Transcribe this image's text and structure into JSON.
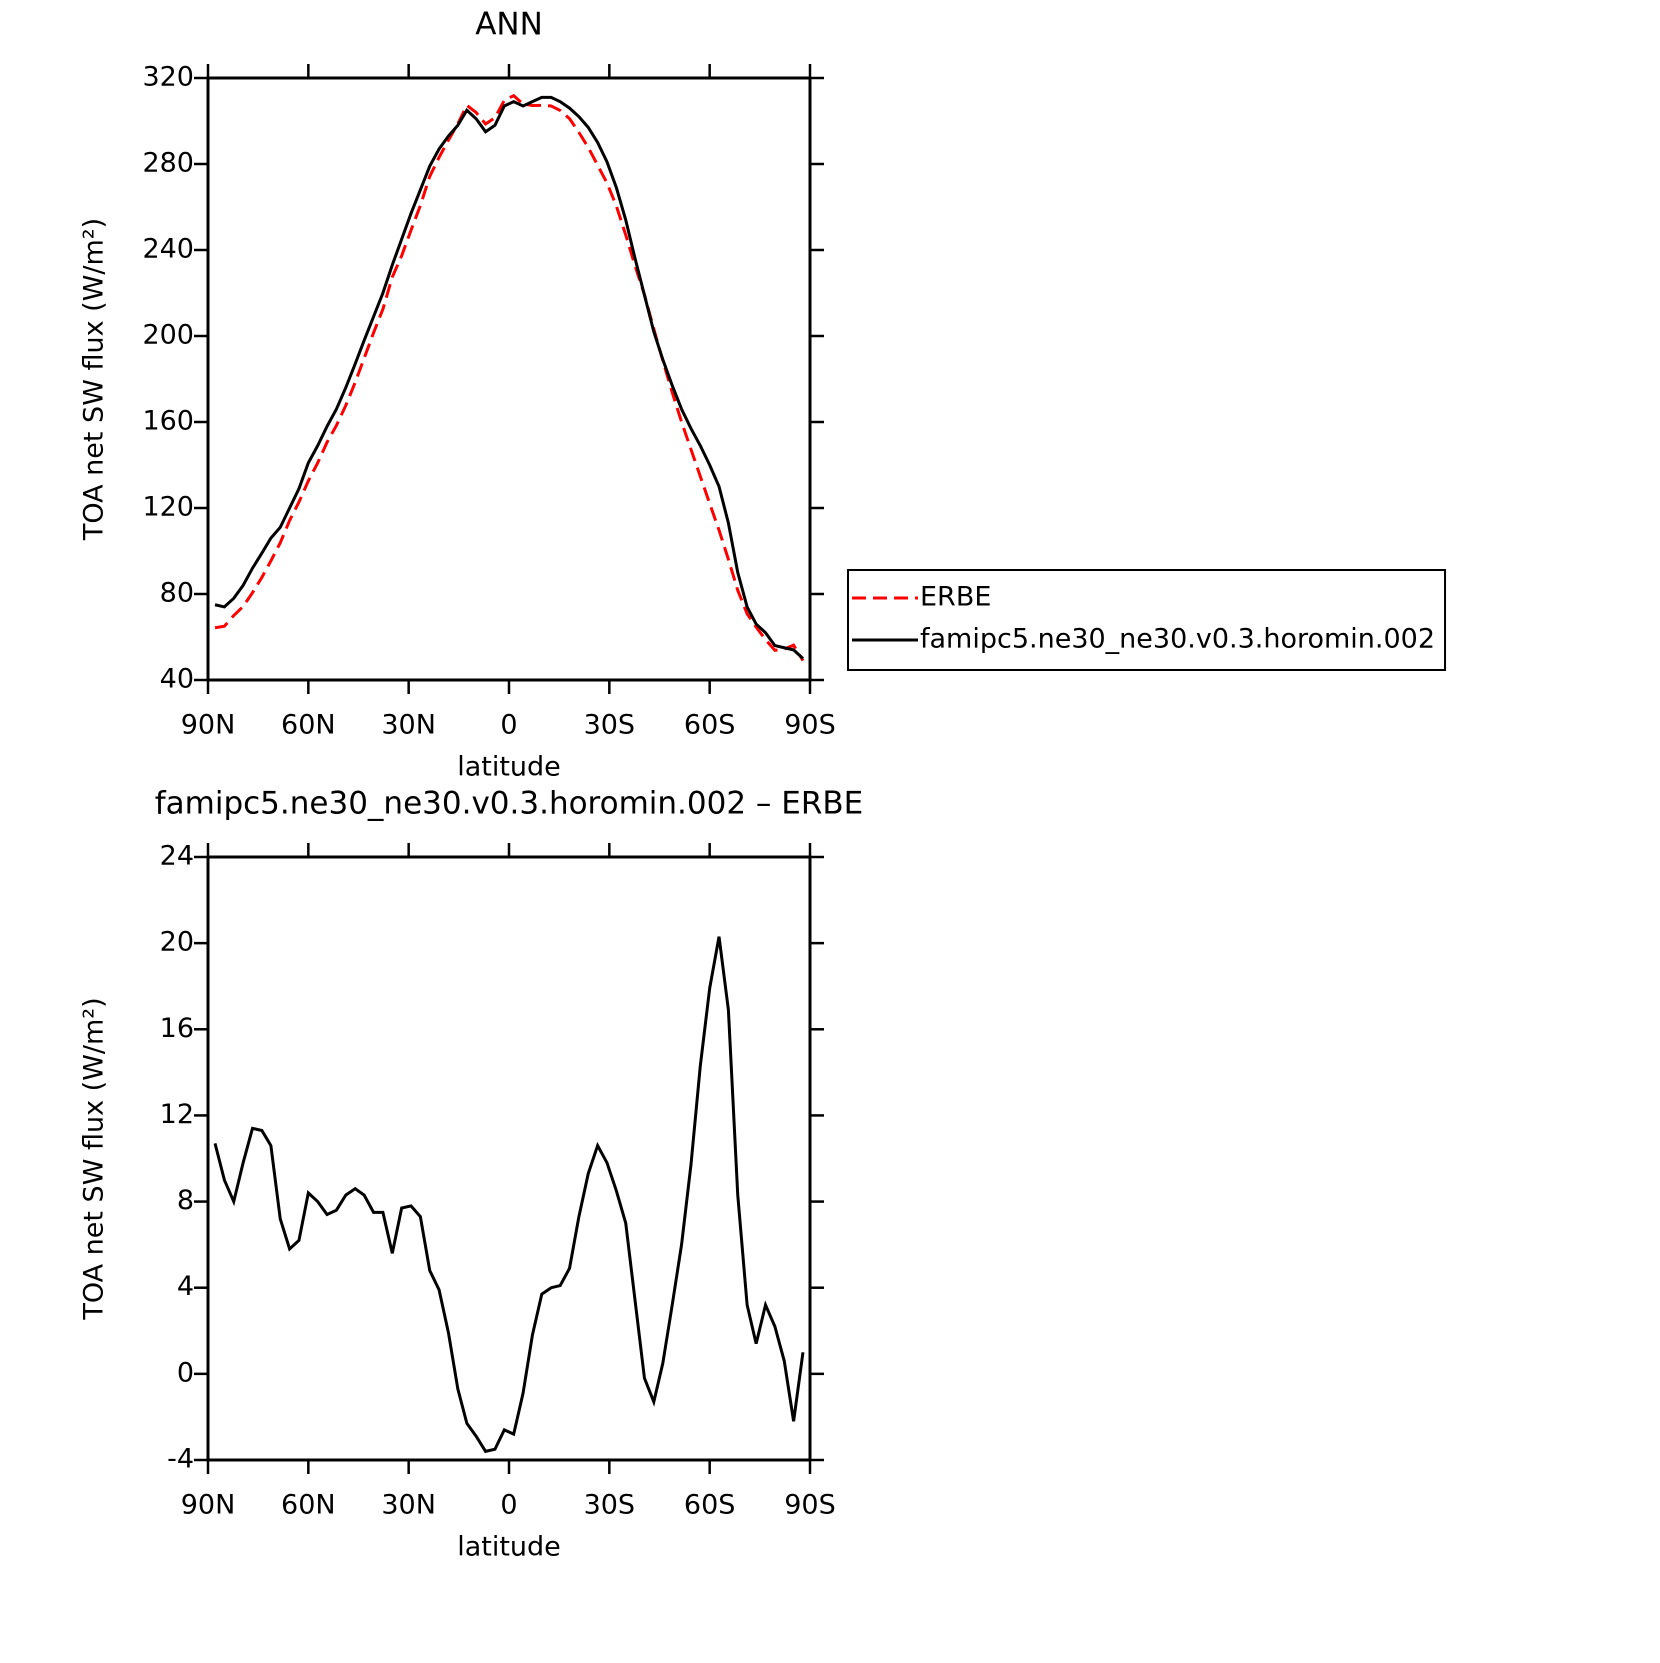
{
  "chart_data": [
    {
      "type": "line",
      "title": "ANN",
      "xlabel": "latitude",
      "ylabel": "TOA net SW flux (W/m²)",
      "x": [
        87.9,
        85.1,
        82.3,
        79.5,
        76.7,
        73.9,
        71.2,
        68.4,
        65.6,
        62.8,
        60.0,
        57.2,
        54.4,
        51.6,
        48.8,
        46.0,
        43.3,
        40.5,
        37.7,
        34.9,
        32.1,
        29.3,
        26.5,
        23.7,
        20.9,
        18.1,
        15.3,
        12.6,
        9.8,
        7.0,
        4.2,
        1.4,
        -1.4,
        -4.2,
        -7.0,
        -9.8,
        -12.6,
        -15.3,
        -18.1,
        -20.9,
        -23.7,
        -26.5,
        -29.3,
        -32.1,
        -34.9,
        -37.7,
        -40.5,
        -43.3,
        -46.0,
        -48.8,
        -51.6,
        -54.4,
        -57.2,
        -60.0,
        -62.8,
        -65.6,
        -68.4,
        -71.2,
        -73.9,
        -76.7,
        -79.5,
        -82.3,
        -85.1,
        -87.9
      ],
      "series": [
        {
          "name": "ERBE",
          "color": "#ff0000",
          "linestyle": "dashed",
          "values": [
            64.3,
            65,
            70,
            74.2,
            80.6,
            87.7,
            95.4,
            103.8,
            114.2,
            122.8,
            132.6,
            141,
            150.6,
            158.4,
            167.7,
            178.4,
            189.7,
            201.5,
            212.5,
            227.4,
            237.3,
            249.2,
            260.7,
            274.2,
            283.1,
            291.1,
            298.7,
            307.3,
            303.9,
            298.6,
            301.5,
            309.6,
            311.8,
            307.9,
            307.2,
            307.3,
            307,
            304.9,
            301.1,
            294.7,
            287.7,
            279.4,
            271.2,
            260.5,
            247,
            232.6,
            219.2,
            203.3,
            188.5,
            173.8,
            160,
            147.3,
            134.7,
            122.1,
            109.7,
            96.1,
            81.7,
            70.8,
            64.6,
            58.8,
            53.8,
            54.4,
            56.2,
            49
          ]
        },
        {
          "name": "famipc5.ne30_ne30.v0.3.horomin.002",
          "color": "#000000",
          "linestyle": "solid",
          "values": [
            75,
            74,
            78,
            84,
            92,
            99,
            106,
            111,
            120,
            129,
            141,
            149,
            158,
            166,
            176,
            187,
            198,
            209,
            220,
            233,
            245,
            257,
            268,
            279,
            287,
            293,
            298,
            305,
            301,
            295,
            298,
            307,
            309,
            307,
            309,
            311,
            311,
            309,
            306,
            302,
            297,
            290,
            281,
            269,
            254,
            236,
            219,
            202,
            189,
            177,
            166,
            157,
            149,
            140,
            130,
            113,
            90,
            74,
            66,
            62,
            56,
            55,
            54,
            50
          ]
        }
      ],
      "xlim": [
        90,
        -90
      ],
      "xticks": [
        {
          "value": 90,
          "label": "90N"
        },
        {
          "value": 60,
          "label": "60N"
        },
        {
          "value": 30,
          "label": "30N"
        },
        0,
        {
          "value": -30,
          "label": "30S"
        },
        {
          "value": -60,
          "label": "60S"
        },
        {
          "value": -90,
          "label": "90S"
        }
      ],
      "ylim": [
        40,
        320
      ],
      "yticks": [
        40,
        80,
        120,
        160,
        200,
        240,
        280,
        320
      ],
      "grid": false,
      "legend": "right"
    },
    {
      "type": "line",
      "title": "famipc5.ne30_ne30.v0.3.horomin.002 – ERBE",
      "xlabel": "latitude",
      "ylabel": "TOA net SW flux (W/m²)",
      "x": [
        87.9,
        85.1,
        82.3,
        79.5,
        76.7,
        73.9,
        71.2,
        68.4,
        65.6,
        62.8,
        60.0,
        57.2,
        54.4,
        51.6,
        48.8,
        46.0,
        43.3,
        40.5,
        37.7,
        34.9,
        32.1,
        29.3,
        26.5,
        23.7,
        20.9,
        18.1,
        15.3,
        12.6,
        9.8,
        7.0,
        4.2,
        1.4,
        -1.4,
        -4.2,
        -7.0,
        -9.8,
        -12.6,
        -15.3,
        -18.1,
        -20.9,
        -23.7,
        -26.5,
        -29.3,
        -32.1,
        -34.9,
        -37.7,
        -40.5,
        -43.3,
        -46.0,
        -48.8,
        -51.6,
        -54.4,
        -57.2,
        -60.0,
        -62.8,
        -65.6,
        -68.4,
        -71.2,
        -73.9,
        -76.7,
        -79.5,
        -82.3,
        -85.1,
        -87.9
      ],
      "series": [
        {
          "color": "#000000",
          "linestyle": "solid",
          "values": [
            10.7,
            9.0,
            8.0,
            9.8,
            11.4,
            11.3,
            10.6,
            7.2,
            5.8,
            6.2,
            8.4,
            8.0,
            7.4,
            7.6,
            8.3,
            8.6,
            8.3,
            7.5,
            7.5,
            5.6,
            7.7,
            7.8,
            7.3,
            4.8,
            3.9,
            1.9,
            -0.7,
            -2.3,
            -2.9,
            -3.6,
            -3.5,
            -2.6,
            -2.8,
            -0.9,
            1.8,
            3.7,
            4.0,
            4.1,
            4.9,
            7.3,
            9.3,
            10.6,
            9.8,
            8.5,
            7.0,
            3.4,
            -0.2,
            -1.3,
            0.5,
            3.2,
            6.0,
            9.7,
            14.3,
            17.9,
            20.3,
            16.9,
            8.3,
            3.2,
            1.4,
            3.2,
            2.2,
            0.6,
            -2.2,
            1.0
          ]
        }
      ],
      "xlim": [
        90,
        -90
      ],
      "xticks": [
        {
          "value": 90,
          "label": "90N"
        },
        {
          "value": 60,
          "label": "60N"
        },
        {
          "value": 30,
          "label": "30N"
        },
        0,
        {
          "value": -30,
          "label": "30S"
        },
        {
          "value": -60,
          "label": "60S"
        },
        {
          "value": -90,
          "label": "90S"
        }
      ],
      "ylim": [
        -4,
        24
      ],
      "yticks": [
        -4,
        0,
        4,
        8,
        12,
        16,
        20,
        24
      ],
      "grid": false
    }
  ]
}
